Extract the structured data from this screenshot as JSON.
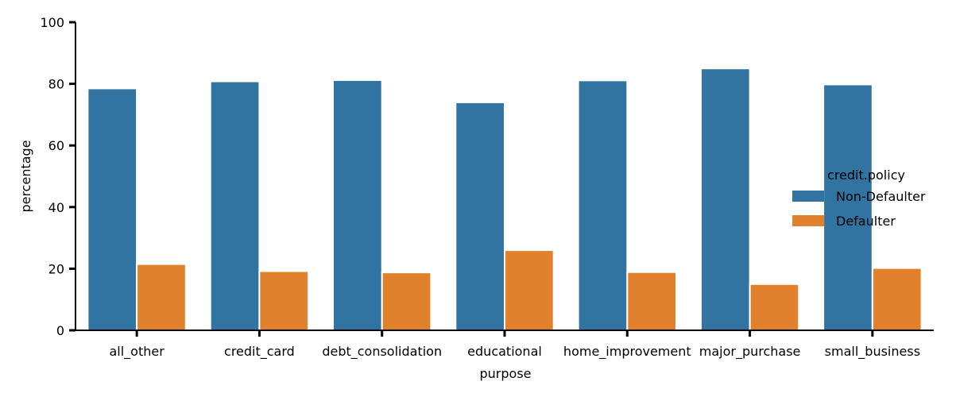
{
  "chart_data": {
    "type": "bar",
    "title": "",
    "xlabel": "purpose",
    "ylabel": "percentage",
    "ylim": [
      0,
      100
    ],
    "yticks": [
      0,
      20,
      40,
      60,
      80,
      100
    ],
    "grid": false,
    "legend": {
      "title": "credit.policy",
      "placement": "right"
    },
    "categories": [
      "all_other",
      "credit_card",
      "debt_consolidation",
      "educational",
      "home_improvement",
      "major_purchase",
      "small_business"
    ],
    "series": [
      {
        "name": "Non-Defaulter",
        "color": "#3274a1",
        "values": [
          78.5,
          80.8,
          81.2,
          74.0,
          81.1,
          85.0,
          79.8
        ]
      },
      {
        "name": "Defaulter",
        "color": "#e1812c",
        "values": [
          21.5,
          19.2,
          18.8,
          26.0,
          18.9,
          15.0,
          20.2
        ]
      }
    ]
  }
}
